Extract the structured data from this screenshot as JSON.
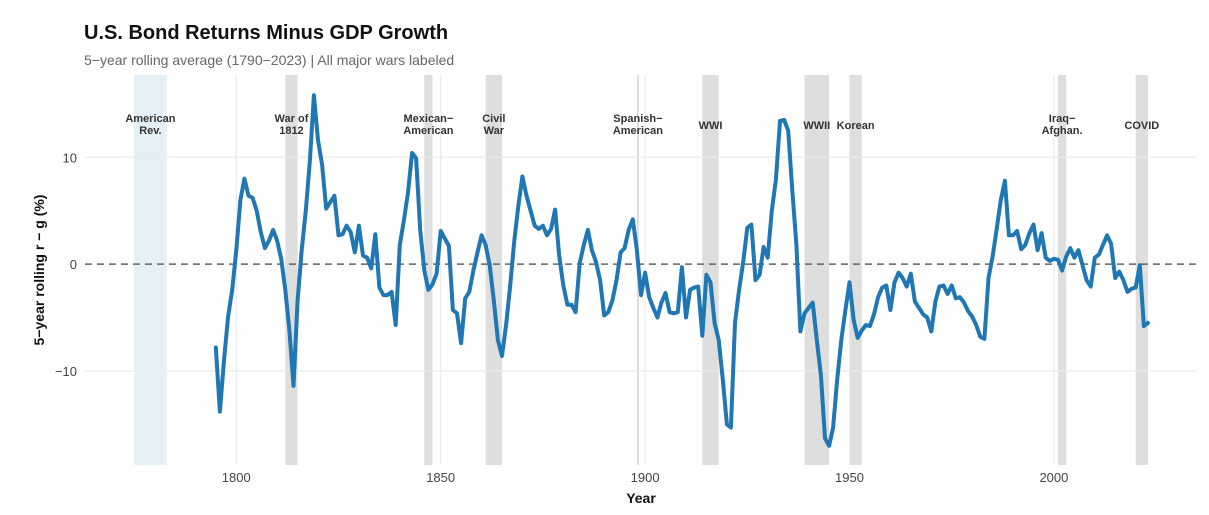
{
  "chart_data": {
    "type": "line",
    "title": "U.S. Bond Returns Minus GDP Growth",
    "subtitle": "5−year rolling average (1790−2023) | All major wars labeled",
    "xlabel": "Year",
    "ylabel": "5−year rolling r − g (%)",
    "xlim": [
      1763,
      2035
    ],
    "ylim": [
      -18.8,
      17.7
    ],
    "xticks": [
      1800,
      1850,
      1900,
      1950,
      2000
    ],
    "yticks": [
      -10,
      0,
      10
    ],
    "grid": true,
    "reference_line": 0,
    "line_color": "#1f77b4",
    "wars": [
      {
        "lines": [
          "American",
          "Rev."
        ],
        "start": 1775,
        "end": 1783,
        "color": "#e3f1f7"
      },
      {
        "lines": [
          "War of",
          "1812"
        ],
        "start": 1812,
        "end": 1815,
        "color": "#dedede"
      },
      {
        "lines": [
          "Mexican−",
          "American"
        ],
        "start": 1846,
        "end": 1848,
        "color": "#dedede"
      },
      {
        "lines": [
          "Civil",
          "War"
        ],
        "start": 1861,
        "end": 1865,
        "color": "#dedede"
      },
      {
        "lines": [
          "Spanish−",
          "American"
        ],
        "start": 1898,
        "end": 1898.4,
        "color": "#dedede"
      },
      {
        "lines": [
          "WWI"
        ],
        "start": 1914,
        "end": 1918,
        "color": "#dedede"
      },
      {
        "lines": [
          "WWII"
        ],
        "start": 1939,
        "end": 1945,
        "color": "#dedede"
      },
      {
        "lines": [
          "Korean"
        ],
        "start": 1950,
        "end": 1953,
        "color": "#dedede"
      },
      {
        "lines": [
          "Iraq−",
          "Afghan."
        ],
        "start": 2001,
        "end": 2003,
        "color": "#dedede"
      },
      {
        "lines": [
          "COVID"
        ],
        "start": 2020,
        "end": 2023,
        "color": "#dedede"
      }
    ],
    "series": [
      {
        "name": "5-year rolling r - g",
        "start_year": 1795,
        "values": [
          -7.8,
          -13.8,
          -9,
          -4.9,
          -2.4,
          1.3,
          6,
          8,
          6.4,
          6.2,
          5,
          3,
          1.5,
          2.2,
          3.2,
          2.2,
          0.5,
          -2.4,
          -6.2,
          -11.4,
          -3.4,
          1.3,
          5,
          9.7,
          15.8,
          11.6,
          9.3,
          5.2,
          5.8,
          6.4,
          2.7,
          2.8,
          3.6,
          3,
          1.1,
          3.6,
          0.8,
          0.6,
          -0.4,
          2.8,
          -2.2,
          -2.9,
          -2.9,
          -2.6,
          -5.7,
          1.8,
          4.1,
          6.7,
          10.4,
          9.9,
          3.2,
          -0.6,
          -2.4,
          -1.9,
          -0.9,
          3.1,
          2.4,
          1.7,
          -4.3,
          -4.6,
          -7.4,
          -3.2,
          -2.6,
          -0.6,
          1.1,
          2.7,
          1.8,
          -0.1,
          -3.4,
          -7.1,
          -8.6,
          -5.7,
          -2,
          2.2,
          5.5,
          8.2,
          6.4,
          5,
          3.6,
          3.3,
          3.6,
          2.7,
          3.3,
          5.1,
          0.8,
          -2,
          -3.8,
          -3.8,
          -4.5,
          0.1,
          1.8,
          3.2,
          1.3,
          0.2,
          -1.5,
          -4.8,
          -4.5,
          -3.4,
          -1.5,
          1.1,
          1.5,
          3.2,
          4.2,
          1.3,
          -2.9,
          -0.8,
          -3.1,
          -4.1,
          -5,
          -3.6,
          -2.7,
          -4.5,
          -4.6,
          -4.5,
          -0.3,
          -5,
          -2.4,
          -2.2,
          -2.1,
          -6.7,
          -1,
          -1.7,
          -5.5,
          -7.1,
          -10.8,
          -15,
          -15.3,
          -5.5,
          -2.4,
          0.2,
          3.4,
          3.7,
          -1.5,
          -1,
          1.6,
          0.6,
          5,
          7.9,
          13.4,
          13.5,
          12.5,
          6.9,
          1.8,
          -6.3,
          -4.6,
          -4.1,
          -3.6,
          -7.1,
          -10.4,
          -16.3,
          -17,
          -15.3,
          -10.8,
          -7.1,
          -4.3,
          -1.7,
          -5.2,
          -6.9,
          -6.2,
          -5.7,
          -5.8,
          -4.7,
          -3.1,
          -2.2,
          -2,
          -4.3,
          -1.7,
          -0.8,
          -1.3,
          -2.1,
          -0.9,
          -3.5,
          -4.1,
          -4.7,
          -5,
          -6.3,
          -3.5,
          -2.1,
          -2,
          -2.8,
          -2,
          -3.2,
          -3.1,
          -3.6,
          -4.4,
          -4.9,
          -5.7,
          -6.8,
          -7,
          -1.3,
          0.7,
          3.3,
          6,
          7.8,
          2.7,
          2.7,
          3.1,
          1.4,
          1.8,
          2.9,
          3.7,
          1.3,
          2.9,
          0.6,
          0.3,
          0.5,
          0.4,
          -0.6,
          0.7,
          1.5,
          0.6,
          1.3,
          -0.1,
          -1.5,
          -2.1,
          0.6,
          0.9,
          1.8,
          2.7,
          1.9,
          -1.3,
          -0.7,
          -1.5,
          -2.6,
          -2.3,
          -2.2,
          -0.1,
          -5.8,
          -5.5
        ]
      }
    ]
  }
}
